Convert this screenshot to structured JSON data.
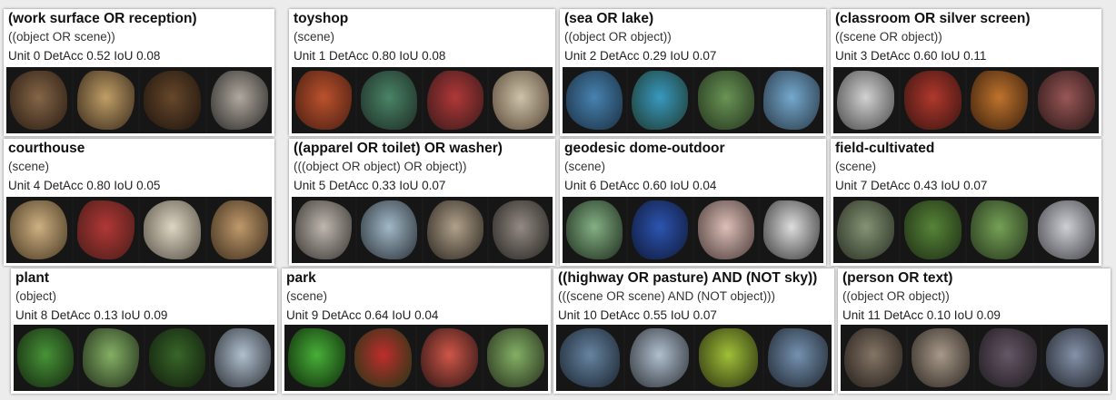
{
  "units": [
    {
      "title": "(work surface OR reception)",
      "sub": "((object OR scene))",
      "stats": "Unit 0 DetAcc 0.52 IoU 0.08",
      "thumb_colors": [
        [
          "#8a6a4a",
          "#2b1c12"
        ],
        [
          "#c9a66b",
          "#3a2a1c"
        ],
        [
          "#6b4a2c",
          "#1e140c"
        ],
        [
          "#b8b0a6",
          "#2c2a28"
        ]
      ]
    },
    {
      "title": "toyshop",
      "sub": "(scene)",
      "stats": "Unit 1 DetAcc 0.80 IoU 0.08",
      "thumb_colors": [
        [
          "#c4552e",
          "#4a1e12"
        ],
        [
          "#4c8a6a",
          "#1e2c26"
        ],
        [
          "#b83a3a",
          "#3a1a1a"
        ],
        [
          "#d8cbb0",
          "#5a4a38"
        ]
      ]
    },
    {
      "title": "(sea OR lake)",
      "sub": "((object OR object))",
      "stats": "Unit 2 DetAcc 0.29 IoU 0.07",
      "thumb_colors": [
        [
          "#4a88b8",
          "#1a3044"
        ],
        [
          "#3aa0c8",
          "#1e3a2e"
        ],
        [
          "#6e9a58",
          "#24361e"
        ],
        [
          "#7ab0d8",
          "#2a3a48"
        ]
      ]
    },
    {
      "title": "(classroom OR silver screen)",
      "sub": "((scene OR object))",
      "stats": "Unit 3 DetAcc 0.60 IoU 0.11",
      "thumb_colors": [
        [
          "#dcdcdc",
          "#4a4a4a"
        ],
        [
          "#b83a2e",
          "#3a1410"
        ],
        [
          "#c8782e",
          "#3a200c"
        ],
        [
          "#a05a5a",
          "#2a1616"
        ]
      ]
    },
    {
      "title": "courthouse",
      "sub": "(scene)",
      "stats": "Unit 4 DetAcc 0.80 IoU 0.05",
      "thumb_colors": [
        [
          "#d8b888",
          "#4a3a22"
        ],
        [
          "#b83a38",
          "#4a1c18"
        ],
        [
          "#e8e0cc",
          "#5a5448"
        ],
        [
          "#c8a070",
          "#3e2e1c"
        ]
      ]
    },
    {
      "title": "((apparel OR toilet) OR washer)",
      "sub": "(((object OR object) OR object))",
      "stats": "Unit 5 DetAcc 0.33 IoU 0.07",
      "thumb_colors": [
        [
          "#c8c0b8",
          "#3a3632"
        ],
        [
          "#a8c0d0",
          "#2a3238"
        ],
        [
          "#b8a890",
          "#2c2620"
        ],
        [
          "#9a9088",
          "#262422"
        ]
      ]
    },
    {
      "title": "geodesic dome-outdoor",
      "sub": "(scene)",
      "stats": "Unit 6 DetAcc 0.60 IoU 0.04",
      "thumb_colors": [
        [
          "#8ab88a",
          "#1e2e1e"
        ],
        [
          "#2e58b8",
          "#0e1838"
        ],
        [
          "#e8c8c0",
          "#4a3a38"
        ],
        [
          "#e8e8e8",
          "#3a3a3a"
        ]
      ]
    },
    {
      "title": "field-cultivated",
      "sub": "(scene)",
      "stats": "Unit 7 DetAcc 0.43 IoU 0.07",
      "thumb_colors": [
        [
          "#8a9a7a",
          "#2a3022"
        ],
        [
          "#5a8a3a",
          "#1e2e14"
        ],
        [
          "#7aa85a",
          "#26361c"
        ],
        [
          "#d8d8e0",
          "#44444a"
        ]
      ]
    },
    {
      "title": "plant",
      "sub": "(object)",
      "stats": "Unit 8 DetAcc 0.13 IoU 0.09",
      "thumb_colors": [
        [
          "#4a9a3a",
          "#14260e"
        ],
        [
          "#8ab86a",
          "#22301a"
        ],
        [
          "#3a6a2a",
          "#101c0c"
        ],
        [
          "#b8c8d8",
          "#2e3238"
        ]
      ]
    },
    {
      "title": "park",
      "sub": "(scene)",
      "stats": "Unit 9 DetAcc 0.64 IoU 0.04",
      "thumb_colors": [
        [
          "#4ab83a",
          "#0e2a0a"
        ],
        [
          "#c82e2e",
          "#1e3a14"
        ],
        [
          "#d85a4a",
          "#2a1414"
        ],
        [
          "#8ab86a",
          "#26301c"
        ]
      ]
    },
    {
      "title": "((highway OR pasture) AND (NOT sky))",
      "sub": "(((scene OR scene) AND (NOT object)))",
      "stats": "Unit 10 DetAcc 0.55 IoU 0.07",
      "thumb_colors": [
        [
          "#6a8aa8",
          "#1a2430"
        ],
        [
          "#b8c8d8",
          "#2e3238"
        ],
        [
          "#a8c83a",
          "#2a3210"
        ],
        [
          "#7a98b8",
          "#1e2630"
        ]
      ]
    },
    {
      "title": "(person OR text)",
      "sub": "((object OR object))",
      "stats": "Unit 11 DetAcc 0.10 IoU 0.09",
      "thumb_colors": [
        [
          "#8a7a6a",
          "#241e1a"
        ],
        [
          "#b0a090",
          "#2e2822"
        ],
        [
          "#6a5a6a",
          "#1e1a1e"
        ],
        [
          "#8a98b0",
          "#22262e"
        ]
      ]
    }
  ]
}
